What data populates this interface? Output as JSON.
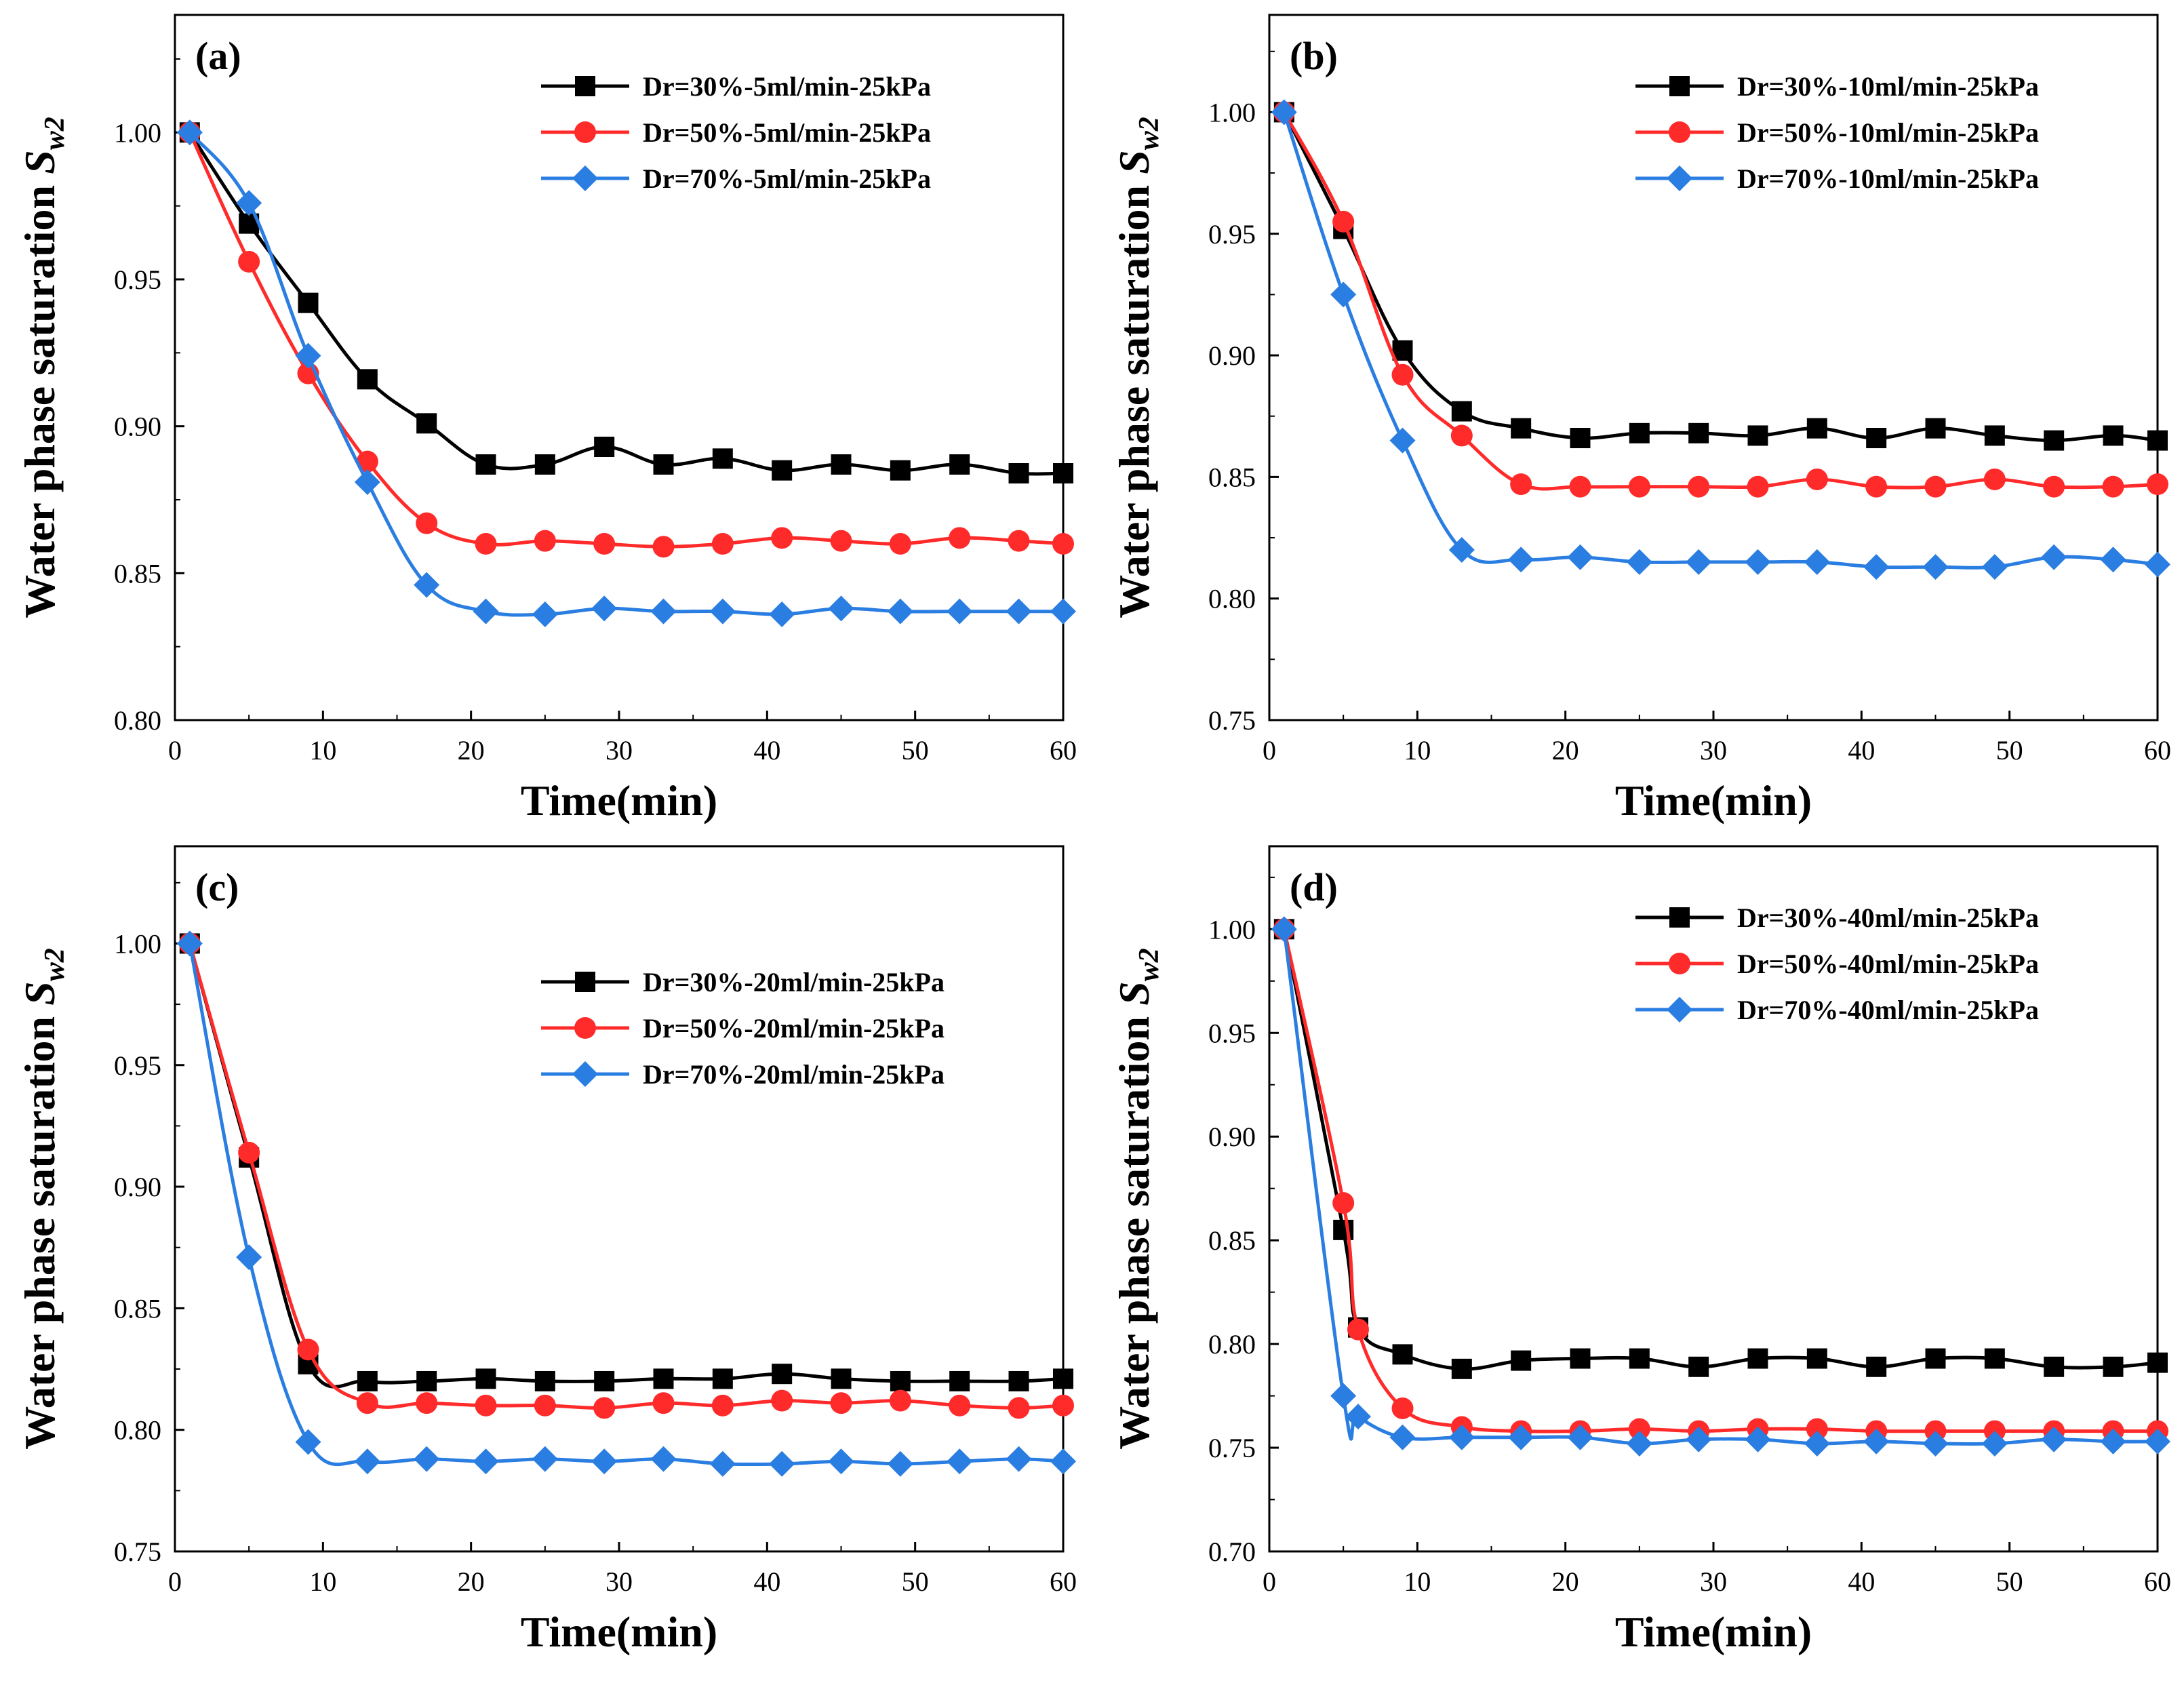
{
  "chart_data": [
    {
      "type": "line",
      "panel_label": "(a)",
      "xlabel": "Time(min)",
      "ylabel": "Water phase saturation ",
      "ylabel_symbol": "S",
      "ylabel_subscript": "w2",
      "xlim": [
        0,
        60
      ],
      "ylim": [
        0.8,
        1.04
      ],
      "xticks": [
        "0",
        "10",
        "20",
        "30",
        "40",
        "50",
        "60"
      ],
      "yticks": [
        "0.80",
        "0.85",
        "0.90",
        "0.95",
        "1.00"
      ],
      "x": [
        1,
        5,
        9,
        13,
        17,
        21,
        25,
        29,
        33,
        37,
        41,
        45,
        49,
        53,
        57,
        60
      ],
      "legend_position": "top-right",
      "series": [
        {
          "name": "Dr=30%-5ml/min-25kPa",
          "color": "#000000",
          "marker": "square",
          "values": [
            1.0,
            0.969,
            0.942,
            0.916,
            0.901,
            0.887,
            0.887,
            0.893,
            0.887,
            0.889,
            0.885,
            0.887,
            0.885,
            0.887,
            0.884,
            0.884
          ]
        },
        {
          "name": "Dr=50%-5ml/min-25kPa",
          "color": "#ff2a2a",
          "marker": "circle",
          "values": [
            1.0,
            0.956,
            0.918,
            0.888,
            0.867,
            0.86,
            0.861,
            0.86,
            0.859,
            0.86,
            0.862,
            0.861,
            0.86,
            0.862,
            0.861,
            0.86
          ]
        },
        {
          "name": "Dr=70%-5ml/min-25kPa",
          "color": "#2a7de1",
          "marker": "diamond",
          "values": [
            1.0,
            0.976,
            0.924,
            0.881,
            0.846,
            0.837,
            0.836,
            0.838,
            0.837,
            0.837,
            0.836,
            0.838,
            0.837,
            0.837,
            0.837,
            0.837
          ]
        }
      ]
    },
    {
      "type": "line",
      "panel_label": "(b)",
      "xlabel": "Time(min)",
      "ylabel": "Water phase saturation ",
      "ylabel_symbol": "S",
      "ylabel_subscript": "w2",
      "xlim": [
        0,
        60
      ],
      "ylim": [
        0.75,
        1.04
      ],
      "xticks": [
        "0",
        "10",
        "20",
        "30",
        "40",
        "50",
        "60"
      ],
      "yticks": [
        "0.75",
        "0.80",
        "0.85",
        "0.90",
        "0.95",
        "1.00"
      ],
      "x": [
        1,
        5,
        9,
        13,
        17,
        21,
        25,
        29,
        33,
        37,
        41,
        45,
        49,
        53,
        57,
        60
      ],
      "legend_position": "top-right",
      "series": [
        {
          "name": "Dr=30%-10ml/min-25kPa",
          "color": "#000000",
          "marker": "square",
          "values": [
            1.0,
            0.952,
            0.902,
            0.877,
            0.87,
            0.866,
            0.868,
            0.868,
            0.867,
            0.87,
            0.866,
            0.87,
            0.867,
            0.865,
            0.867,
            0.865
          ]
        },
        {
          "name": "Dr=50%-10ml/min-25kPa",
          "color": "#ff2a2a",
          "marker": "circle",
          "values": [
            1.0,
            0.955,
            0.892,
            0.867,
            0.847,
            0.846,
            0.846,
            0.846,
            0.846,
            0.849,
            0.846,
            0.846,
            0.849,
            0.846,
            0.846,
            0.847
          ]
        },
        {
          "name": "Dr=70%-10ml/min-25kPa",
          "color": "#2a7de1",
          "marker": "diamond",
          "values": [
            1.0,
            0.925,
            0.865,
            0.82,
            0.816,
            0.817,
            0.815,
            0.815,
            0.815,
            0.815,
            0.813,
            0.813,
            0.813,
            0.817,
            0.816,
            0.814
          ]
        }
      ]
    },
    {
      "type": "line",
      "panel_label": "(c)",
      "xlabel": "Time(min)",
      "ylabel": "Water phase saturation ",
      "ylabel_symbol": "S",
      "ylabel_subscript": "w2",
      "xlim": [
        0,
        60
      ],
      "ylim": [
        0.75,
        1.04
      ],
      "xticks": [
        "0",
        "10",
        "20",
        "30",
        "40",
        "50",
        "60"
      ],
      "yticks": [
        "0.75",
        "0.80",
        "0.85",
        "0.90",
        "0.95",
        "1.00"
      ],
      "x": [
        1,
        5,
        9,
        13,
        17,
        21,
        25,
        29,
        33,
        37,
        41,
        45,
        49,
        53,
        57,
        60
      ],
      "legend_position": "right",
      "series": [
        {
          "name": "Dr=30%-20ml/min-25kPa",
          "color": "#000000",
          "marker": "square",
          "values": [
            1.0,
            0.912,
            0.827,
            0.82,
            0.82,
            0.821,
            0.82,
            0.82,
            0.821,
            0.821,
            0.823,
            0.821,
            0.82,
            0.82,
            0.82,
            0.821
          ]
        },
        {
          "name": "Dr=50%-20ml/min-25kPa",
          "color": "#ff2a2a",
          "marker": "circle",
          "values": [
            1.0,
            0.914,
            0.833,
            0.811,
            0.811,
            0.81,
            0.81,
            0.809,
            0.811,
            0.81,
            0.812,
            0.811,
            0.812,
            0.81,
            0.809,
            0.81
          ]
        },
        {
          "name": "Dr=70%-20ml/min-25kPa",
          "color": "#2a7de1",
          "marker": "diamond",
          "values": [
            1.0,
            0.871,
            0.795,
            0.787,
            0.788,
            0.787,
            0.788,
            0.787,
            0.788,
            0.786,
            0.786,
            0.787,
            0.786,
            0.787,
            0.788,
            0.787
          ]
        }
      ]
    },
    {
      "type": "line",
      "panel_label": "(d)",
      "xlabel": "Time(min)",
      "ylabel": "Water phase saturation ",
      "ylabel_symbol": "S",
      "ylabel_subscript": "w2",
      "xlim": [
        0,
        60
      ],
      "ylim": [
        0.7,
        1.04
      ],
      "xticks": [
        "0",
        "10",
        "20",
        "30",
        "40",
        "50",
        "60"
      ],
      "yticks": [
        "0.70",
        "0.75",
        "0.80",
        "0.85",
        "0.90",
        "0.95",
        "1.00"
      ],
      "x": [
        1,
        5,
        6,
        9,
        13,
        17,
        21,
        25,
        29,
        33,
        37,
        41,
        45,
        49,
        53,
        57,
        60
      ],
      "legend_position": "top-right",
      "series": [
        {
          "name": "Dr=30%-40ml/min-25kPa",
          "color": "#000000",
          "marker": "square",
          "values": [
            1.0,
            0.855,
            0.808,
            0.795,
            0.788,
            0.792,
            0.793,
            0.793,
            0.789,
            0.793,
            0.793,
            0.789,
            0.793,
            0.793,
            0.789,
            0.789,
            0.791
          ]
        },
        {
          "name": "Dr=50%-40ml/min-25kPa",
          "color": "#ff2a2a",
          "marker": "circle",
          "values": [
            1.0,
            0.868,
            0.807,
            0.769,
            0.76,
            0.758,
            0.758,
            0.759,
            0.758,
            0.759,
            0.759,
            0.758,
            0.758,
            0.758,
            0.758,
            0.758,
            0.758
          ]
        },
        {
          "name": "Dr=70%-40ml/min-25kPa",
          "color": "#2a7de1",
          "marker": "diamond",
          "values": [
            1.0,
            0.775,
            0.765,
            0.755,
            0.755,
            0.755,
            0.755,
            0.752,
            0.754,
            0.754,
            0.752,
            0.753,
            0.752,
            0.752,
            0.754,
            0.753,
            0.753
          ]
        }
      ]
    }
  ]
}
